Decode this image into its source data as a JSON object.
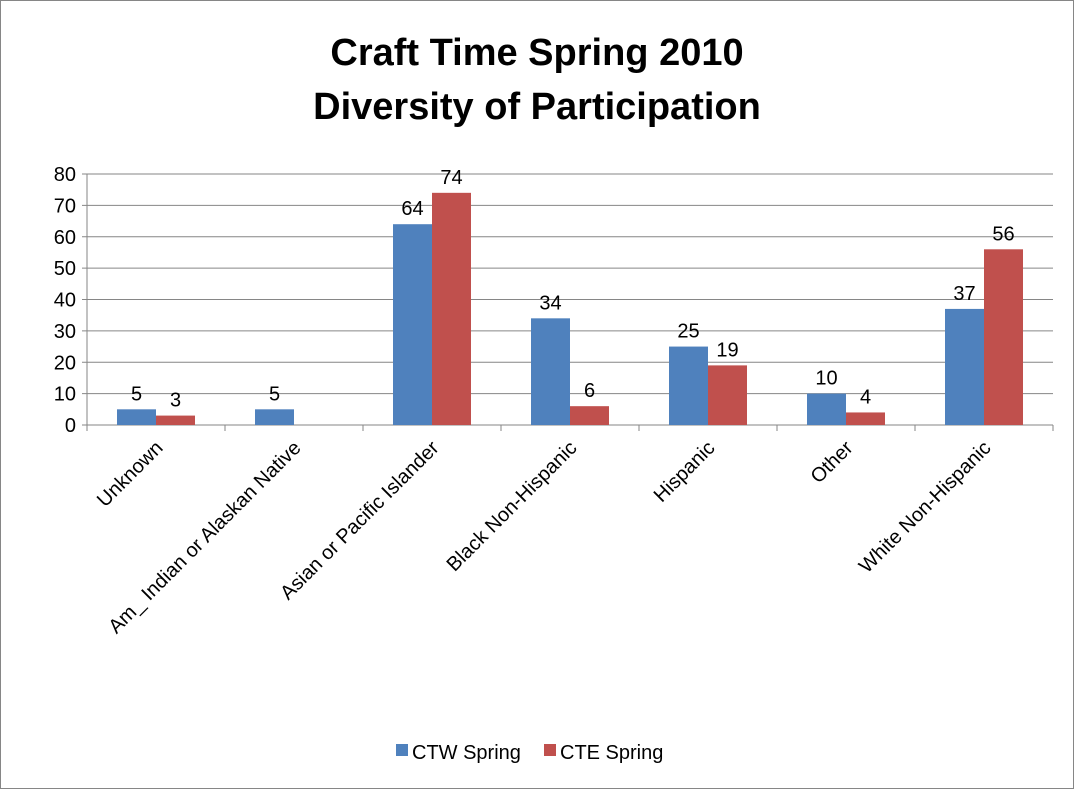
{
  "chart_data": {
    "type": "bar",
    "title_line1": "Craft Time Spring 2010",
    "title_line2": "Diversity of Participation",
    "categories": [
      "Unknown",
      "Am_ Indian or Alaskan Native",
      "Asian or Pacific Islander",
      "Black Non-Hispanic",
      "Hispanic",
      "Other",
      "White Non-Hispanic"
    ],
    "series": [
      {
        "name": "CTW Spring",
        "color": "#4f81bd",
        "values": [
          5,
          5,
          64,
          34,
          25,
          10,
          37
        ]
      },
      {
        "name": "CTE Spring",
        "color": "#c0504d",
        "values": [
          3,
          null,
          74,
          6,
          19,
          4,
          56
        ]
      }
    ],
    "ylim": [
      0,
      80
    ],
    "yticks": [
      0,
      10,
      20,
      30,
      40,
      50,
      60,
      70,
      80
    ],
    "grid": true,
    "legend_position": "bottom"
  }
}
